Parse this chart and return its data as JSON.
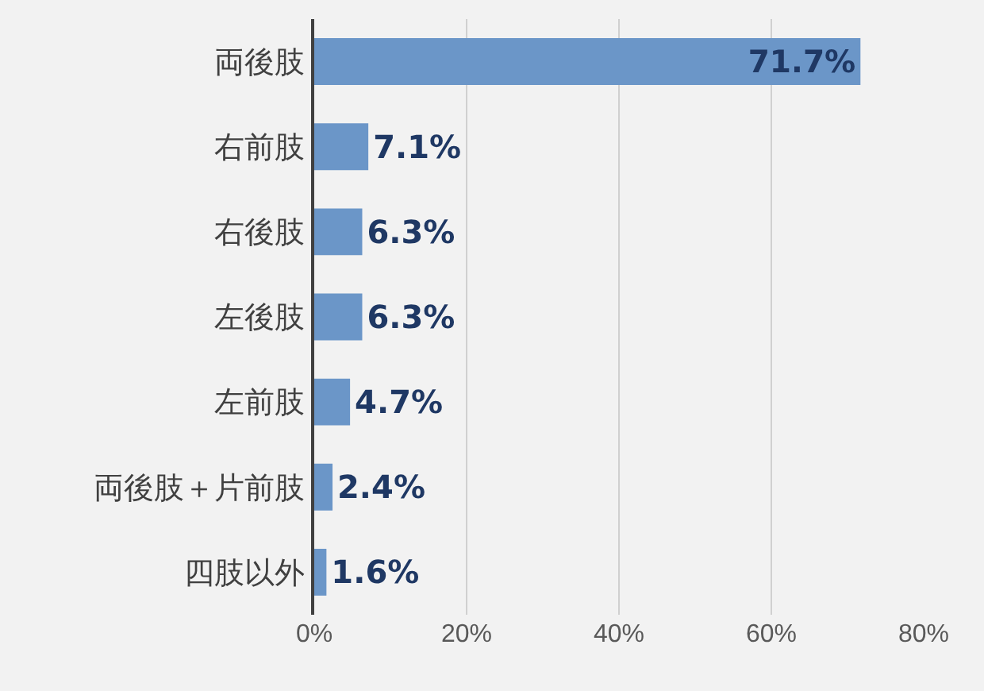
{
  "chart_data": {
    "type": "bar",
    "orientation": "horizontal",
    "categories": [
      "両後肢",
      "右前肢",
      "右後肢",
      "左後肢",
      "左前肢",
      "両後肢＋片前肢",
      "四肢以外"
    ],
    "values": [
      71.7,
      7.1,
      6.3,
      6.3,
      4.7,
      2.4,
      1.6
    ],
    "value_labels": [
      "71.7%",
      "7.1%",
      "6.3%",
      "6.3%",
      "4.7%",
      "2.4%",
      "1.6%"
    ],
    "color": "#6b96c8",
    "xlim": [
      0,
      80
    ],
    "xticks": [
      {
        "value": 0,
        "label": "0%"
      },
      {
        "value": 20,
        "label": "20%"
      },
      {
        "value": 40,
        "label": "40%"
      },
      {
        "value": 60,
        "label": "60%"
      },
      {
        "value": 80,
        "label": "80%"
      }
    ],
    "grid": "x",
    "legend": false
  }
}
